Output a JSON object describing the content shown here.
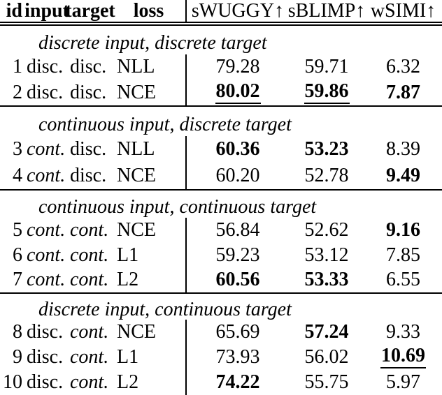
{
  "table": {
    "colors": {
      "text": "#000000",
      "rule": "#000000",
      "background": "#ffffff"
    },
    "header": {
      "id": "id",
      "input": "input",
      "target": "target",
      "loss": "loss",
      "metrics": [
        "sWUGGY↑",
        "sBLIMP↑",
        "wSIMI↑"
      ]
    },
    "sections": [
      {
        "title": "discrete input, discrete target",
        "rows": [
          {
            "id": "1",
            "input": {
              "text": "disc.",
              "style": ""
            },
            "target": {
              "text": "disc.",
              "style": ""
            },
            "loss": "NLL",
            "values": [
              {
                "text": "79.28",
                "style": ""
              },
              {
                "text": "59.71",
                "style": ""
              },
              {
                "text": "6.32",
                "style": ""
              }
            ]
          },
          {
            "id": "2",
            "input": {
              "text": "disc.",
              "style": ""
            },
            "target": {
              "text": "disc.",
              "style": ""
            },
            "loss": "NCE",
            "values": [
              {
                "text": "80.02",
                "style": "bold underline"
              },
              {
                "text": "59.86",
                "style": "bold underline"
              },
              {
                "text": "7.87",
                "style": "bold"
              }
            ]
          }
        ]
      },
      {
        "title": "continuous input, discrete target",
        "rows": [
          {
            "id": "3",
            "input": {
              "text": "cont.",
              "style": "italic"
            },
            "target": {
              "text": "disc.",
              "style": ""
            },
            "loss": "NLL",
            "values": [
              {
                "text": "60.36",
                "style": "bold"
              },
              {
                "text": "53.23",
                "style": "bold"
              },
              {
                "text": "8.39",
                "style": ""
              }
            ]
          },
          {
            "id": "4",
            "input": {
              "text": "cont.",
              "style": "italic"
            },
            "target": {
              "text": "disc.",
              "style": ""
            },
            "loss": "NCE",
            "values": [
              {
                "text": "60.20",
                "style": ""
              },
              {
                "text": "52.78",
                "style": ""
              },
              {
                "text": "9.49",
                "style": "bold"
              }
            ]
          }
        ]
      },
      {
        "title": "continuous input, continuous target",
        "rows": [
          {
            "id": "5",
            "input": {
              "text": "cont.",
              "style": "italic"
            },
            "target": {
              "text": "cont.",
              "style": "italic"
            },
            "loss": "NCE",
            "values": [
              {
                "text": "56.84",
                "style": ""
              },
              {
                "text": "52.62",
                "style": ""
              },
              {
                "text": "9.16",
                "style": "bold"
              }
            ]
          },
          {
            "id": "6",
            "input": {
              "text": "cont.",
              "style": "italic"
            },
            "target": {
              "text": "cont.",
              "style": "italic"
            },
            "loss": "L1",
            "values": [
              {
                "text": "59.23",
                "style": ""
              },
              {
                "text": "53.12",
                "style": ""
              },
              {
                "text": "7.85",
                "style": ""
              }
            ]
          },
          {
            "id": "7",
            "input": {
              "text": "cont.",
              "style": "italic"
            },
            "target": {
              "text": "cont.",
              "style": "italic"
            },
            "loss": "L2",
            "values": [
              {
                "text": "60.56",
                "style": "bold"
              },
              {
                "text": "53.33",
                "style": "bold"
              },
              {
                "text": "6.55",
                "style": ""
              }
            ]
          }
        ]
      },
      {
        "title": "discrete input, continuous target",
        "rows": [
          {
            "id": "8",
            "input": {
              "text": "disc.",
              "style": ""
            },
            "target": {
              "text": "cont.",
              "style": "italic"
            },
            "loss": "NCE",
            "values": [
              {
                "text": "65.69",
                "style": ""
              },
              {
                "text": "57.24",
                "style": "bold"
              },
              {
                "text": "9.33",
                "style": ""
              }
            ]
          },
          {
            "id": "9",
            "input": {
              "text": "disc.",
              "style": ""
            },
            "target": {
              "text": "cont.",
              "style": "italic"
            },
            "loss": "L1",
            "values": [
              {
                "text": "73.93",
                "style": ""
              },
              {
                "text": "56.02",
                "style": ""
              },
              {
                "text": "10.69",
                "style": "bold underline"
              }
            ]
          },
          {
            "id": "10",
            "input": {
              "text": "disc.",
              "style": ""
            },
            "target": {
              "text": "cont.",
              "style": "italic"
            },
            "loss": "L2",
            "values": [
              {
                "text": "74.22",
                "style": "bold"
              },
              {
                "text": "55.75",
                "style": ""
              },
              {
                "text": "5.97",
                "style": ""
              }
            ]
          }
        ]
      }
    ]
  }
}
